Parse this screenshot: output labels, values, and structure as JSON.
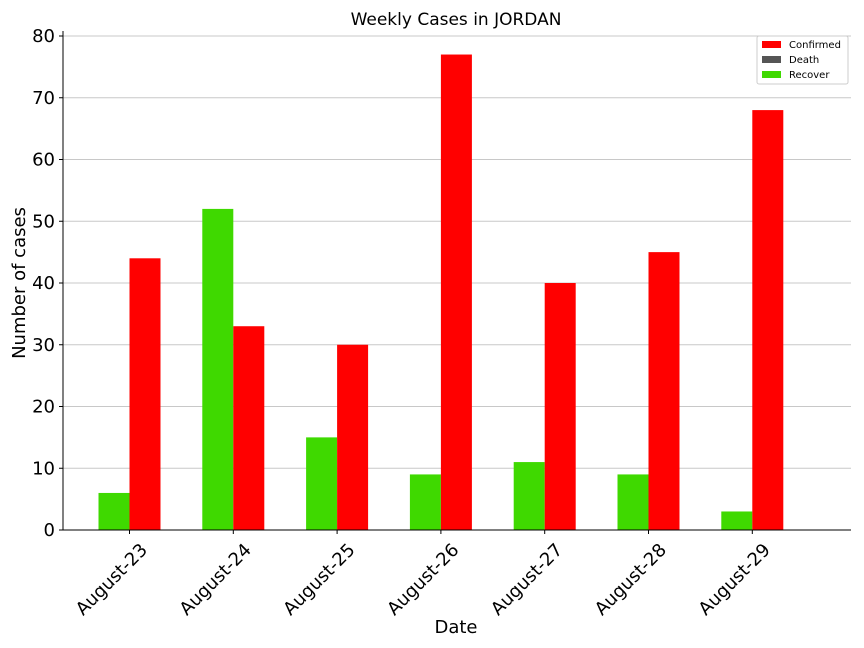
{
  "chart_data": {
    "type": "bar",
    "title": "Weekly Cases in JORDAN",
    "xlabel": "Date",
    "ylabel": "Number of cases",
    "categories": [
      "August-23",
      "August-24",
      "August-25",
      "August-26",
      "August-27",
      "August-28",
      "August-29"
    ],
    "series": [
      {
        "name": "Recover",
        "color": "#3fd900",
        "values": [
          6,
          52,
          15,
          9,
          11,
          9,
          3
        ]
      },
      {
        "name": "Confirmed",
        "color": "#ff0000",
        "values": [
          44,
          33,
          30,
          77,
          40,
          45,
          68
        ]
      },
      {
        "name": "Death",
        "color": "#555555",
        "values": [
          0,
          0,
          0,
          0,
          0,
          0,
          0
        ]
      }
    ],
    "legend_order": [
      "Confirmed",
      "Death",
      "Recover"
    ],
    "legend_position": "top-right",
    "ylim": [
      0,
      80
    ],
    "yticks": [
      0,
      10,
      20,
      30,
      40,
      50,
      60,
      70,
      80
    ],
    "grid": "horizontal"
  }
}
